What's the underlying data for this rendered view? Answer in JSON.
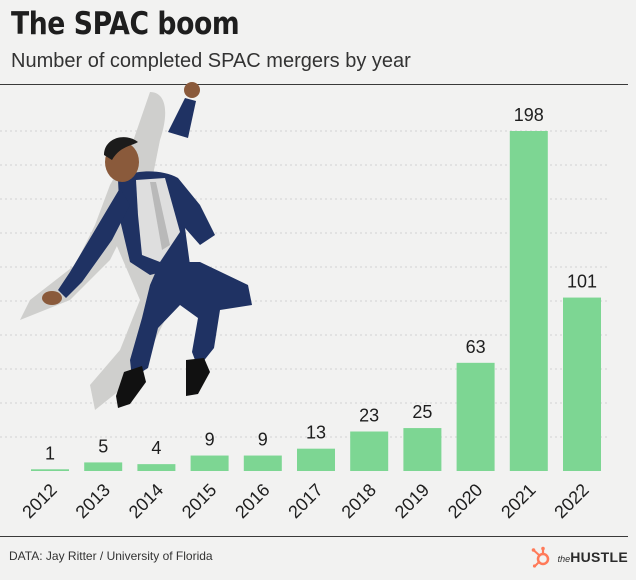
{
  "title": "The SPAC boom",
  "subtitle": "Number of completed SPAC mergers by year",
  "source": "DATA: Jay Ritter / University of Florida",
  "brand": {
    "icon": "hubspot-sprocket-icon",
    "prefix": "the",
    "name": "HUSTLE",
    "accent": "#ff7a59"
  },
  "colors": {
    "bar": "#7dd693",
    "grid": "#d2d2d2",
    "text": "#1e1e1e",
    "background": "#f2f2f1"
  },
  "illustration": "jumping-businessman",
  "chart_data": {
    "type": "bar",
    "title": "The SPAC boom",
    "subtitle": "Number of completed SPAC mergers by year",
    "xlabel": "",
    "ylabel": "",
    "categories": [
      "2012",
      "2013",
      "2014",
      "2015",
      "2016",
      "2017",
      "2018",
      "2019",
      "2020",
      "2021",
      "2022"
    ],
    "values": [
      1,
      5,
      4,
      9,
      9,
      13,
      23,
      25,
      63,
      198,
      101
    ],
    "ylim": [
      0,
      210
    ],
    "grid": true,
    "legend": "none"
  }
}
